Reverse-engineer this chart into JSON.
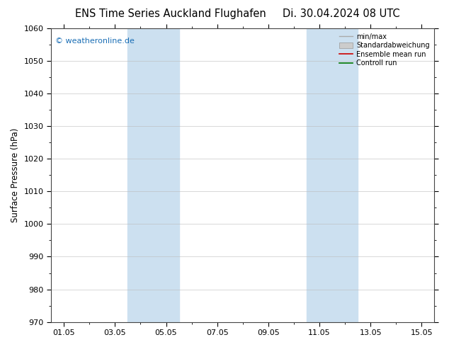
{
  "title_left": "ENS Time Series Auckland Flughafen",
  "title_right": "Di. 30.04.2024 08 UTC",
  "ylabel": "Surface Pressure (hPa)",
  "ylim": [
    970,
    1060
  ],
  "yticks": [
    970,
    980,
    990,
    1000,
    1010,
    1020,
    1030,
    1040,
    1050,
    1060
  ],
  "xtick_labels": [
    "01.05",
    "03.05",
    "05.05",
    "07.05",
    "09.05",
    "11.05",
    "13.05",
    "15.05"
  ],
  "shade_color": "#cce0f0",
  "background_color": "#ffffff",
  "watermark": "© weatheronline.de",
  "watermark_color": "#1a6eb5",
  "legend_labels": [
    "min/max",
    "Standardabweichung",
    "Ensemble mean run",
    "Controll run"
  ],
  "title_fontsize": 10.5,
  "axis_label_fontsize": 8.5,
  "tick_fontsize": 8,
  "grid_color": "#bbbbbb",
  "border_color": "#444444",
  "shaded_bands_days": [
    {
      "start_day": 4,
      "end_day": 6
    },
    {
      "start_day": 11,
      "end_day": 13
    }
  ],
  "xaxis_start_day": 1,
  "xaxis_end_day": 15
}
